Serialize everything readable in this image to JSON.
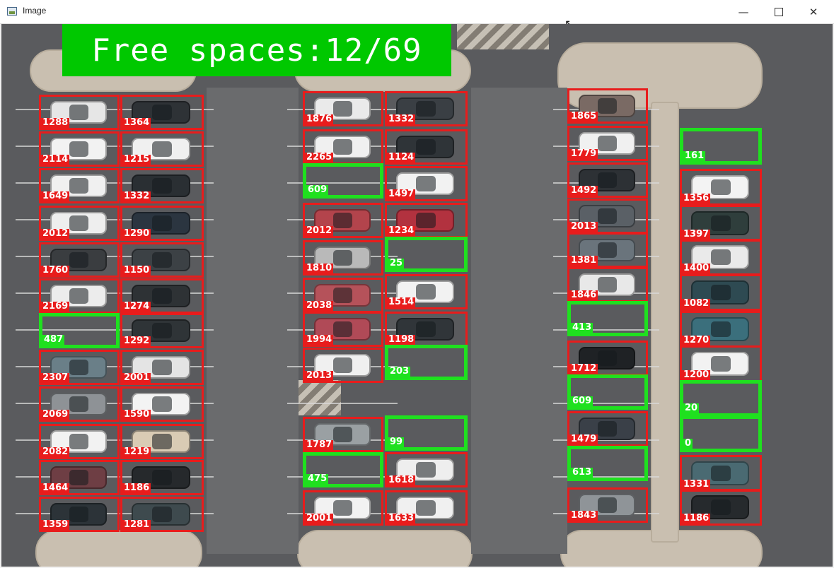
{
  "window": {
    "title": "Image",
    "min_icon": "minimize-icon",
    "max_icon": "maximize-icon",
    "close_icon": "close-icon"
  },
  "overlay": {
    "free_spaces": "Free spaces:12/69"
  },
  "colors": {
    "occupied": "#e81c1c",
    "free": "#1fe01f",
    "banner": "#00c800"
  },
  "columns": [
    {
      "slots": [
        {
          "label": "1288",
          "free": false,
          "car": "#e6e6e6"
        },
        {
          "label": "2114",
          "free": false,
          "car": "#f2f2f2"
        },
        {
          "label": "1649",
          "free": false,
          "car": "#f0f0f0"
        },
        {
          "label": "2012",
          "free": false,
          "car": "#eeeeee"
        },
        {
          "label": "1760",
          "free": false,
          "car": "#3a3d40"
        },
        {
          "label": "2169",
          "free": false,
          "car": "#ececec"
        },
        {
          "label": "487",
          "free": true,
          "car": ""
        },
        {
          "label": "2307",
          "free": false,
          "car": "#6a7f88"
        },
        {
          "label": "2069",
          "free": false,
          "car": "#8e9296"
        },
        {
          "label": "2082",
          "free": false,
          "car": "#f2f2f2"
        },
        {
          "label": "1464",
          "free": false,
          "car": "#6e3e44"
        },
        {
          "label": "1359",
          "free": false,
          "car": "#2c3338"
        }
      ]
    },
    {
      "slots": [
        {
          "label": "1364",
          "free": false,
          "car": "#2e3236"
        },
        {
          "label": "1215",
          "free": false,
          "car": "#f0f0f0"
        },
        {
          "label": "1332",
          "free": false,
          "car": "#2a2f33"
        },
        {
          "label": "1290",
          "free": false,
          "car": "#2b3540"
        },
        {
          "label": "1150",
          "free": false,
          "car": "#3c4145"
        },
        {
          "label": "1274",
          "free": false,
          "car": "#2e3235"
        },
        {
          "label": "1292",
          "free": false,
          "car": "#2f3437"
        },
        {
          "label": "2001",
          "free": false,
          "car": "#e4e4e4"
        },
        {
          "label": "1590",
          "free": false,
          "car": "#f3f3f3"
        },
        {
          "label": "1219",
          "free": false,
          "car": "#d9cbb4"
        },
        {
          "label": "1186",
          "free": false,
          "car": "#26292c"
        },
        {
          "label": "1281",
          "free": false,
          "car": "#3e4a4e"
        }
      ]
    },
    {
      "slots": [
        {
          "label": "1876",
          "free": false,
          "car": "#eaeaea"
        },
        {
          "label": "2265",
          "free": false,
          "car": "#f0f0f0"
        },
        {
          "label": "609",
          "free": true,
          "car": ""
        },
        {
          "label": "2012",
          "free": false,
          "car": "#b3444c"
        },
        {
          "label": "1810",
          "free": false,
          "car": "#b9b9b9"
        },
        {
          "label": "2038",
          "free": false,
          "car": "#b5525a"
        },
        {
          "label": "1994",
          "free": false,
          "car": "#b04a57"
        },
        {
          "label": "2013",
          "free": false,
          "car": "#f0f0f0"
        },
        {
          "label": "1787",
          "free": false,
          "car": "#9aa0a3"
        },
        {
          "label": "475",
          "free": true,
          "car": ""
        },
        {
          "label": "2001",
          "free": false,
          "car": "#f2f2f2"
        }
      ]
    },
    {
      "slots": [
        {
          "label": "1332",
          "free": false,
          "car": "#3a3f44"
        },
        {
          "label": "1124",
          "free": false,
          "car": "#2f3438"
        },
        {
          "label": "1497",
          "free": false,
          "car": "#f2f2f2"
        },
        {
          "label": "1234",
          "free": false,
          "car": "#b2323f"
        },
        {
          "label": "25",
          "free": true,
          "car": ""
        },
        {
          "label": "1514",
          "free": false,
          "car": "#f2f2f2"
        },
        {
          "label": "1198",
          "free": false,
          "car": "#303539"
        },
        {
          "label": "203",
          "free": true,
          "car": ""
        },
        {
          "label": "99",
          "free": true,
          "car": ""
        },
        {
          "label": "1618",
          "free": false,
          "car": "#eeeeee"
        },
        {
          "label": "1633",
          "free": false,
          "car": "#f0f0f0"
        }
      ]
    },
    {
      "slots": [
        {
          "label": "1865",
          "free": false,
          "car": "#7a6a64"
        },
        {
          "label": "1779",
          "free": false,
          "car": "#f0f0f0"
        },
        {
          "label": "1492",
          "free": false,
          "car": "#2d3135"
        },
        {
          "label": "2013",
          "free": false,
          "car": "#5a6066"
        },
        {
          "label": "1381",
          "free": false,
          "car": "#6a747c"
        },
        {
          "label": "1846",
          "free": false,
          "car": "#e8e8e8"
        },
        {
          "label": "413",
          "free": true,
          "car": ""
        },
        {
          "label": "1712",
          "free": false,
          "car": "#1f2225"
        },
        {
          "label": "609",
          "free": true,
          "car": ""
        },
        {
          "label": "1479",
          "free": false,
          "car": "#3a4048"
        },
        {
          "label": "613",
          "free": true,
          "car": ""
        },
        {
          "label": "1843",
          "free": false,
          "car": "#8f9498"
        }
      ]
    },
    {
      "slots": [
        {
          "label": "161",
          "free": true,
          "car": ""
        },
        {
          "label": "1356",
          "free": false,
          "car": "#f3f3f3"
        },
        {
          "label": "1397",
          "free": false,
          "car": "#2f3e3c"
        },
        {
          "label": "1400",
          "free": false,
          "car": "#eaeaea"
        },
        {
          "label": "1082",
          "free": false,
          "car": "#2e4a52"
        },
        {
          "label": "1270",
          "free": false,
          "car": "#3b6f7c"
        },
        {
          "label": "1200",
          "free": false,
          "car": "#f2f2f2"
        },
        {
          "label": "20",
          "free": true,
          "car": ""
        },
        {
          "label": "0",
          "free": true,
          "car": ""
        },
        {
          "label": "1331",
          "free": false,
          "car": "#4a6a72"
        },
        {
          "label": "1186",
          "free": false,
          "car": "#262a2d"
        }
      ]
    }
  ]
}
